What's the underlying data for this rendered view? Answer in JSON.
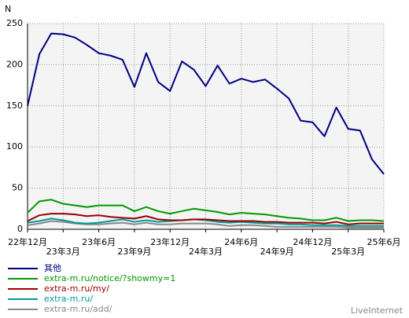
{
  "chart_data": {
    "type": "line",
    "ylabel": "N",
    "categories": [
      "22年12月",
      null,
      null,
      "23年3月",
      null,
      null,
      "23年6月",
      null,
      null,
      "23年9月",
      null,
      null,
      "23年12月",
      null,
      null,
      "24年3月",
      null,
      null,
      "24年6月",
      null,
      null,
      "24年9月",
      null,
      null,
      "24年12月",
      null,
      null,
      "25年3月",
      null,
      null,
      "25年6月"
    ],
    "series": [
      {
        "name": "其他",
        "color": "#000080",
        "values": [
          150,
          213,
          238,
          237,
          233,
          224,
          214,
          211,
          206,
          173,
          214,
          179,
          168,
          204,
          194,
          174,
          199,
          177,
          183,
          179,
          182,
          171,
          159,
          132,
          130,
          113,
          148,
          122,
          120,
          85,
          67
        ]
      },
      {
        "name": "extra-m.ru/notice/?showmy=1",
        "color": "#009900",
        "values": [
          20,
          34,
          36,
          31,
          29,
          27,
          29,
          29,
          29,
          22,
          27,
          22,
          19,
          22,
          25,
          23,
          21,
          18,
          20,
          19,
          18,
          16,
          14,
          13,
          11,
          11,
          14,
          10,
          11,
          11,
          10
        ]
      },
      {
        "name": "extra-m.ru/my/",
        "color": "#990000",
        "values": [
          10,
          17,
          19,
          19,
          18,
          16,
          17,
          15,
          14,
          13,
          16,
          12,
          11,
          11,
          12,
          12,
          11,
          10,
          10,
          10,
          9,
          9,
          8,
          8,
          8,
          7,
          9,
          6,
          7,
          7,
          7
        ]
      },
      {
        "name": "extra-m.ru/",
        "color": "#009999",
        "values": [
          8,
          10,
          13,
          11,
          8,
          7,
          8,
          10,
          12,
          9,
          11,
          9,
          10,
          11,
          12,
          11,
          9,
          8,
          9,
          8,
          7,
          7,
          6,
          6,
          5,
          5,
          5,
          4,
          4,
          4,
          4
        ]
      },
      {
        "name": "extra-m.ru/add/",
        "color": "#888888",
        "values": [
          5,
          7,
          10,
          9,
          7,
          6,
          6,
          7,
          8,
          6,
          8,
          6,
          6,
          7,
          7,
          7,
          6,
          4,
          5,
          5,
          4,
          3,
          3,
          3,
          3,
          3,
          3,
          2,
          2,
          2,
          2
        ]
      }
    ],
    "ylim": [
      0,
      250
    ],
    "yticks": [
      0,
      50,
      100,
      150,
      200,
      250
    ],
    "grid": true,
    "source": "LiveInternet"
  }
}
